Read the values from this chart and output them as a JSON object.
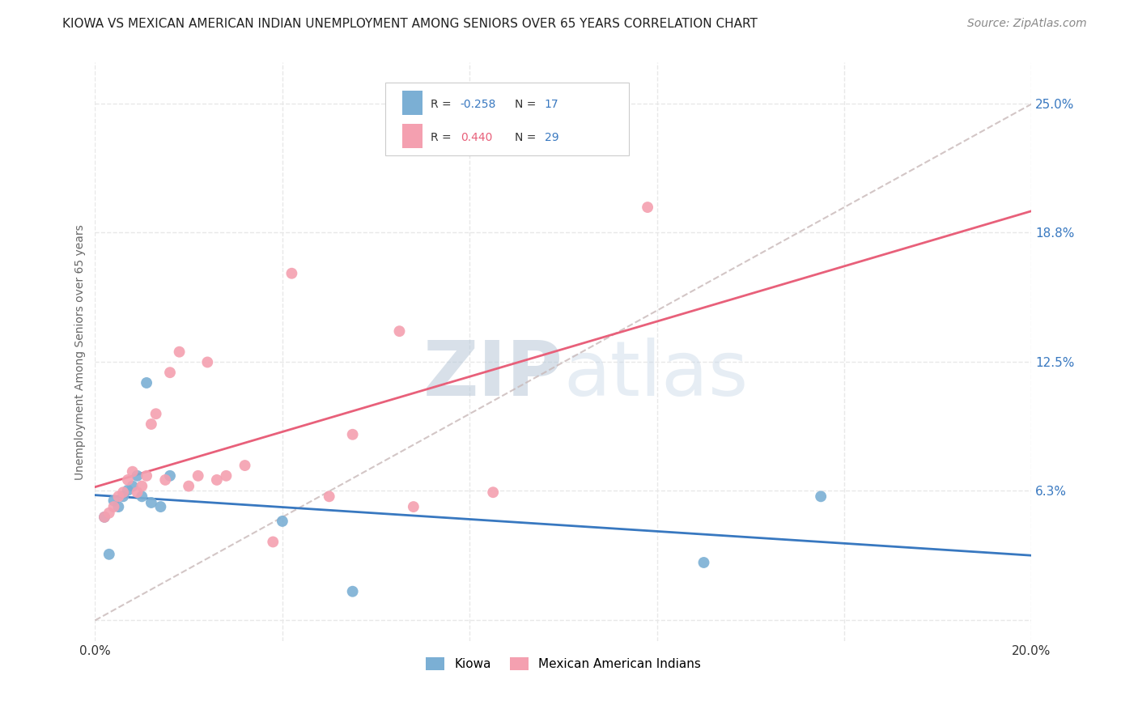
{
  "title": "KIOWA VS MEXICAN AMERICAN INDIAN UNEMPLOYMENT AMONG SENIORS OVER 65 YEARS CORRELATION CHART",
  "source": "Source: ZipAtlas.com",
  "ylabel": "Unemployment Among Seniors over 65 years",
  "xlim": [
    0.0,
    0.2
  ],
  "ylim": [
    -0.01,
    0.27
  ],
  "xticks": [
    0.0,
    0.04,
    0.08,
    0.12,
    0.16,
    0.2
  ],
  "xticklabels": [
    "0.0%",
    "",
    "",
    "",
    "",
    "20.0%"
  ],
  "yticks_right": [
    0.0,
    0.063,
    0.125,
    0.188,
    0.25
  ],
  "yticklabels_right": [
    "",
    "6.3%",
    "12.5%",
    "18.8%",
    "25.0%"
  ],
  "kiowa_color": "#7bafd4",
  "mexican_color": "#f4a0b0",
  "kiowa_line_color": "#3878c0",
  "mexican_line_color": "#e8607a",
  "dashed_line_color": "#c8b8b8",
  "kiowa_R": -0.258,
  "kiowa_N": 17,
  "mexican_R": 0.44,
  "mexican_N": 29,
  "legend_label_kiowa": "Kiowa",
  "legend_label_mexican": "Mexican American Indians",
  "watermark_zip": "ZIP",
  "watermark_atlas": "atlas",
  "kiowa_x": [
    0.002,
    0.003,
    0.004,
    0.005,
    0.006,
    0.007,
    0.008,
    0.009,
    0.01,
    0.011,
    0.012,
    0.014,
    0.016,
    0.04,
    0.055,
    0.13,
    0.155
  ],
  "kiowa_y": [
    0.05,
    0.032,
    0.058,
    0.055,
    0.06,
    0.063,
    0.065,
    0.07,
    0.06,
    0.115,
    0.057,
    0.055,
    0.07,
    0.048,
    0.014,
    0.028,
    0.06
  ],
  "mexican_x": [
    0.002,
    0.003,
    0.004,
    0.005,
    0.006,
    0.007,
    0.008,
    0.009,
    0.01,
    0.011,
    0.012,
    0.013,
    0.015,
    0.016,
    0.018,
    0.02,
    0.022,
    0.024,
    0.026,
    0.028,
    0.032,
    0.038,
    0.042,
    0.05,
    0.055,
    0.065,
    0.068,
    0.085,
    0.118
  ],
  "mexican_y": [
    0.05,
    0.052,
    0.055,
    0.06,
    0.062,
    0.068,
    0.072,
    0.062,
    0.065,
    0.07,
    0.095,
    0.1,
    0.068,
    0.12,
    0.13,
    0.065,
    0.07,
    0.125,
    0.068,
    0.07,
    0.075,
    0.038,
    0.168,
    0.06,
    0.09,
    0.14,
    0.055,
    0.062,
    0.2
  ],
  "background_color": "#ffffff",
  "grid_color": "#e8e8e8",
  "marker_size": 100,
  "title_fontsize": 11,
  "source_fontsize": 10,
  "tick_fontsize": 11,
  "ylabel_fontsize": 10
}
